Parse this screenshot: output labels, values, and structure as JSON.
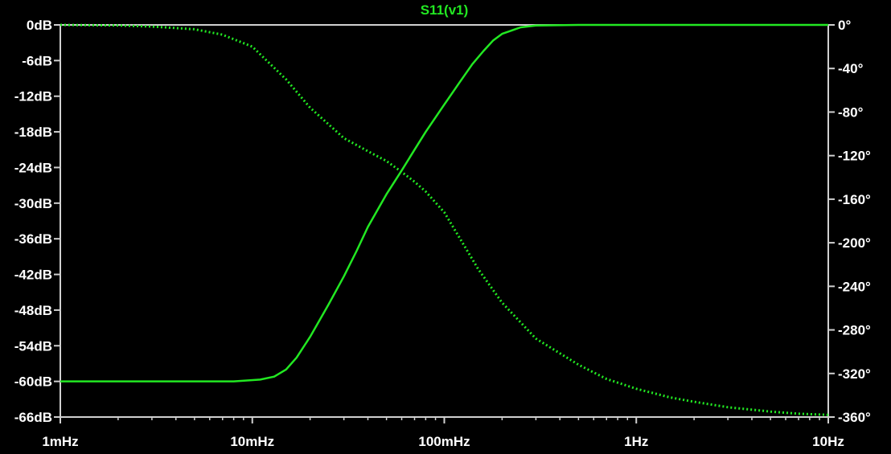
{
  "theme": {
    "background": "#000000",
    "axis_color": "#d0d0d0",
    "text_color": "#ffffff",
    "trace_color": "#22e822"
  },
  "chart_data": {
    "type": "line",
    "title": "S11(v1)",
    "xscale": "log",
    "xlim": [
      0.001,
      10
    ],
    "x_ticks": [
      {
        "value": 0.001,
        "label": "1mHz"
      },
      {
        "value": 0.01,
        "label": "10mHz"
      },
      {
        "value": 0.1,
        "label": "100mHz"
      },
      {
        "value": 1,
        "label": "1Hz"
      },
      {
        "value": 10,
        "label": "10Hz"
      }
    ],
    "left_axis": {
      "unit": "dB",
      "ylim": [
        -66,
        0
      ],
      "ticks": [
        {
          "value": 0,
          "label": "0dB"
        },
        {
          "value": -6,
          "label": "-6dB"
        },
        {
          "value": -12,
          "label": "-12dB"
        },
        {
          "value": -18,
          "label": "-18dB"
        },
        {
          "value": -24,
          "label": "-24dB"
        },
        {
          "value": -30,
          "label": "-30dB"
        },
        {
          "value": -36,
          "label": "-36dB"
        },
        {
          "value": -42,
          "label": "-42dB"
        },
        {
          "value": -48,
          "label": "-48dB"
        },
        {
          "value": -54,
          "label": "-54dB"
        },
        {
          "value": -60,
          "label": "-60dB"
        },
        {
          "value": -66,
          "label": "-66dB"
        }
      ]
    },
    "right_axis": {
      "unit": "degrees",
      "ylim": [
        -360,
        0
      ],
      "ticks": [
        {
          "value": 0,
          "label": "0°"
        },
        {
          "value": -40,
          "label": "-40°"
        },
        {
          "value": -80,
          "label": "-80°"
        },
        {
          "value": -120,
          "label": "-120°"
        },
        {
          "value": -160,
          "label": "-160°"
        },
        {
          "value": -200,
          "label": "-200°"
        },
        {
          "value": -240,
          "label": "-240°"
        },
        {
          "value": -280,
          "label": "-280°"
        },
        {
          "value": -320,
          "label": "-320°"
        },
        {
          "value": -360,
          "label": "-360°"
        }
      ]
    },
    "grid": false,
    "series": [
      {
        "axis": "left",
        "style": "solid",
        "x": [
          0.001,
          0.002,
          0.005,
          0.008,
          0.011,
          0.013,
          0.015,
          0.017,
          0.02,
          0.025,
          0.03,
          0.035,
          0.04,
          0.05,
          0.06,
          0.07,
          0.08,
          0.1,
          0.12,
          0.14,
          0.16,
          0.18,
          0.2,
          0.25,
          0.3,
          0.5,
          1,
          2,
          5,
          10
        ],
        "values": [
          -60,
          -60,
          -60,
          -60,
          -59.7,
          -59.2,
          -58,
          -56,
          -52.5,
          -47,
          -42.3,
          -38,
          -34,
          -28.5,
          -24.5,
          -21,
          -18,
          -13.4,
          -9.7,
          -6.6,
          -4.4,
          -2.6,
          -1.5,
          -0.4,
          -0.1,
          0,
          0,
          0,
          0,
          0
        ]
      },
      {
        "axis": "right",
        "style": "dotted",
        "x": [
          0.001,
          0.002,
          0.003,
          0.005,
          0.007,
          0.01,
          0.015,
          0.02,
          0.03,
          0.04,
          0.05,
          0.06,
          0.07,
          0.08,
          0.1,
          0.15,
          0.2,
          0.3,
          0.5,
          0.7,
          1,
          1.5,
          2,
          3,
          5,
          7,
          10
        ],
        "values": [
          0,
          -0.5,
          -1.5,
          -4,
          -9,
          -20,
          -50,
          -76,
          -104,
          -116,
          -125,
          -135,
          -144,
          -153,
          -172,
          -224,
          -255,
          -288,
          -312,
          -325,
          -334,
          -342,
          -346,
          -351,
          -355,
          -357,
          -358
        ]
      }
    ]
  }
}
